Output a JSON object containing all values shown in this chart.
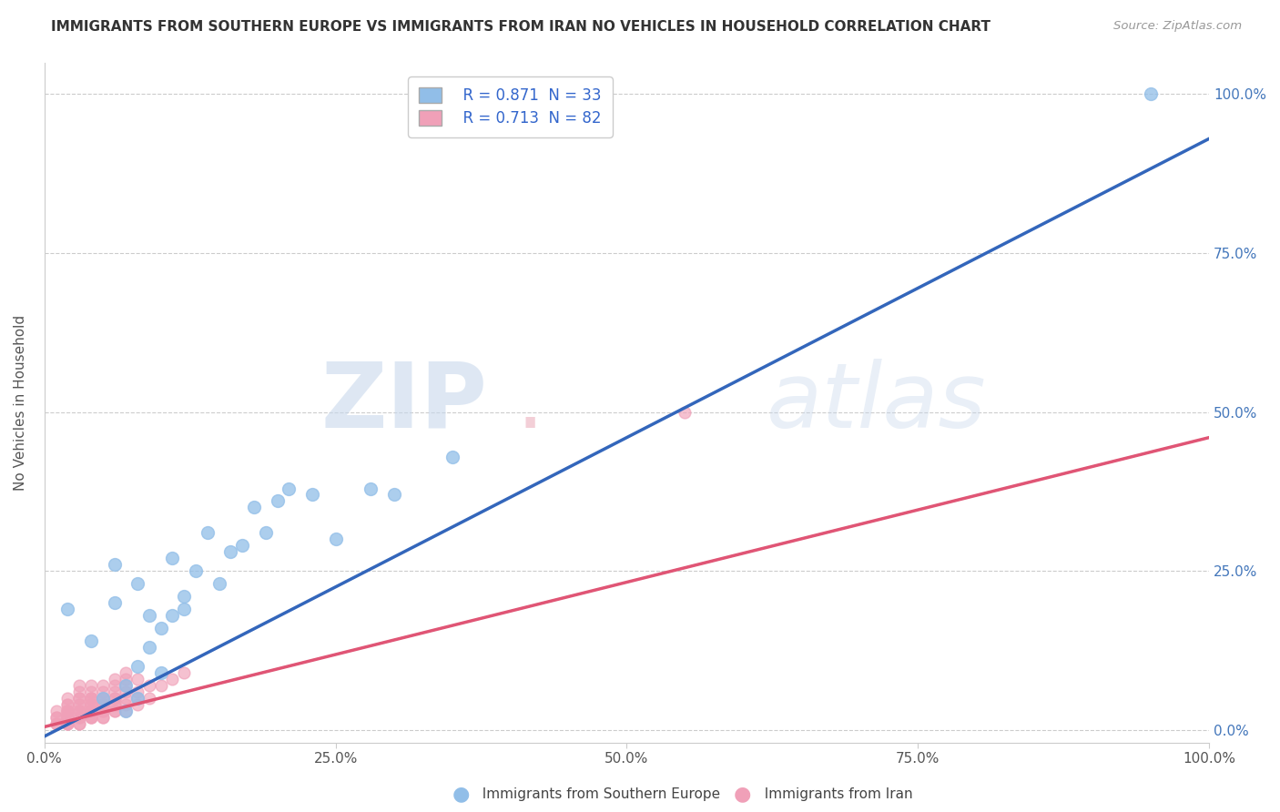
{
  "title": "IMMIGRANTS FROM SOUTHERN EUROPE VS IMMIGRANTS FROM IRAN NO VEHICLES IN HOUSEHOLD CORRELATION CHART",
  "source": "Source: ZipAtlas.com",
  "ylabel": "No Vehicles in Household",
  "xmin": 0.0,
  "xmax": 1.0,
  "ymin": -0.02,
  "ymax": 1.05,
  "xtick_vals": [
    0.0,
    0.25,
    0.5,
    0.75,
    1.0
  ],
  "ytick_vals": [
    0.0,
    0.25,
    0.5,
    0.75,
    1.0
  ],
  "blue_color": "#91BEE8",
  "pink_color": "#F0A0B8",
  "blue_line_color": "#3366BB",
  "pink_line_color": "#E05575",
  "r_blue": 0.871,
  "n_blue": 33,
  "r_pink": 0.713,
  "n_pink": 82,
  "legend_label_blue": "Immigrants from Southern Europe",
  "legend_label_pink": "Immigrants from Iran",
  "watermark_zip": "ZIP",
  "watermark_atlas": "atlas",
  "background_color": "#ffffff",
  "blue_scatter_x": [
    0.02,
    0.04,
    0.05,
    0.06,
    0.06,
    0.07,
    0.07,
    0.08,
    0.08,
    0.08,
    0.09,
    0.09,
    0.1,
    0.1,
    0.11,
    0.11,
    0.12,
    0.12,
    0.13,
    0.14,
    0.15,
    0.16,
    0.17,
    0.18,
    0.19,
    0.2,
    0.21,
    0.23,
    0.25,
    0.28,
    0.3,
    0.35,
    0.95
  ],
  "blue_scatter_y": [
    0.19,
    0.14,
    0.05,
    0.2,
    0.26,
    0.03,
    0.07,
    0.05,
    0.1,
    0.23,
    0.13,
    0.18,
    0.09,
    0.16,
    0.18,
    0.27,
    0.19,
    0.21,
    0.25,
    0.31,
    0.23,
    0.28,
    0.29,
    0.35,
    0.31,
    0.36,
    0.38,
    0.37,
    0.3,
    0.38,
    0.37,
    0.43,
    1.0
  ],
  "pink_scatter_x": [
    0.01,
    0.01,
    0.01,
    0.01,
    0.01,
    0.02,
    0.02,
    0.02,
    0.02,
    0.02,
    0.02,
    0.02,
    0.02,
    0.02,
    0.02,
    0.02,
    0.02,
    0.02,
    0.03,
    0.03,
    0.03,
    0.03,
    0.03,
    0.03,
    0.03,
    0.03,
    0.03,
    0.03,
    0.03,
    0.03,
    0.03,
    0.04,
    0.04,
    0.04,
    0.04,
    0.04,
    0.04,
    0.04,
    0.04,
    0.04,
    0.04,
    0.04,
    0.04,
    0.04,
    0.04,
    0.05,
    0.05,
    0.05,
    0.05,
    0.05,
    0.05,
    0.05,
    0.05,
    0.05,
    0.05,
    0.05,
    0.06,
    0.06,
    0.06,
    0.06,
    0.06,
    0.06,
    0.06,
    0.06,
    0.06,
    0.07,
    0.07,
    0.07,
    0.07,
    0.07,
    0.07,
    0.07,
    0.08,
    0.08,
    0.08,
    0.08,
    0.09,
    0.09,
    0.1,
    0.11,
    0.12,
    0.55
  ],
  "pink_scatter_y": [
    0.01,
    0.01,
    0.02,
    0.02,
    0.03,
    0.01,
    0.01,
    0.01,
    0.02,
    0.02,
    0.02,
    0.03,
    0.03,
    0.03,
    0.03,
    0.04,
    0.04,
    0.05,
    0.01,
    0.01,
    0.02,
    0.02,
    0.03,
    0.03,
    0.03,
    0.04,
    0.04,
    0.05,
    0.05,
    0.06,
    0.07,
    0.02,
    0.02,
    0.02,
    0.03,
    0.03,
    0.03,
    0.04,
    0.04,
    0.04,
    0.05,
    0.05,
    0.05,
    0.06,
    0.07,
    0.02,
    0.02,
    0.03,
    0.03,
    0.04,
    0.04,
    0.04,
    0.05,
    0.05,
    0.06,
    0.07,
    0.03,
    0.03,
    0.04,
    0.04,
    0.05,
    0.05,
    0.06,
    0.07,
    0.08,
    0.03,
    0.04,
    0.05,
    0.06,
    0.07,
    0.08,
    0.09,
    0.04,
    0.05,
    0.06,
    0.08,
    0.05,
    0.07,
    0.07,
    0.08,
    0.09,
    0.5
  ],
  "blue_line_x0": 0.0,
  "blue_line_x1": 1.0,
  "blue_line_y0": -0.01,
  "blue_line_y1": 0.93,
  "pink_line_x0": 0.0,
  "pink_line_x1": 1.0,
  "pink_line_y0": 0.005,
  "pink_line_y1": 0.46
}
